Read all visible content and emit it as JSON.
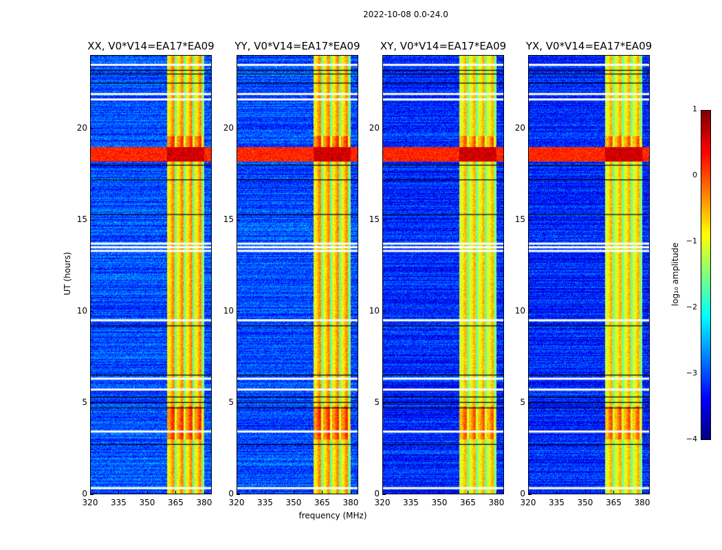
{
  "suptitle": "2022-10-08 0.0-24.0",
  "xlabel": "frequency (MHz)",
  "ylabel": "UT (hours)",
  "colorbar": {
    "label": "log₁₀ amplitude",
    "ticks": [
      "1",
      "0",
      "−1",
      "−2",
      "−3",
      "−4"
    ],
    "range": [
      -4,
      1
    ],
    "colormap": "jet"
  },
  "chart_data": {
    "type": "heatmap",
    "xlim": [
      320,
      384
    ],
    "ylim": [
      0,
      24
    ],
    "xticks": [
      "320",
      "335",
      "350",
      "365",
      "380"
    ],
    "xtick_values": [
      320,
      335,
      350,
      365,
      380
    ],
    "yticks": [
      "0",
      "5",
      "10",
      "15",
      "20"
    ],
    "ytick_values": [
      0,
      5,
      10,
      15,
      20
    ],
    "panels": [
      {
        "title": "XX, V0*V14=EA17*EA09",
        "band_level": -0.6,
        "background_level": -3.0
      },
      {
        "title": "YY, V0*V14=EA17*EA09",
        "band_level": -0.6,
        "background_level": -3.0
      },
      {
        "title": "XY, V0*V14=EA17*EA09",
        "band_level": -0.8,
        "background_level": -3.2
      },
      {
        "title": "YX, V0*V14=EA17*EA09",
        "band_level": -0.8,
        "background_level": -3.2
      }
    ],
    "signal_band_mhz": [
      360.5,
      380
    ],
    "subband_gaps_mhz": [
      365,
      369.8,
      374.6,
      379.3
    ],
    "rfi_hours": [
      18.2,
      19.0
    ],
    "bright_hours": [
      [
        3.0,
        4.8
      ],
      [
        18.9,
        19.6
      ]
    ],
    "flagged_hours_white": [
      0.3,
      3.4,
      5.7,
      6.3,
      9.5,
      13.3,
      13.5,
      13.7,
      21.6,
      21.9,
      23.5
    ],
    "flagged_hours_black": [
      2.7,
      4.7,
      5.0,
      5.3,
      6.5,
      9.2,
      15.3,
      17.2,
      18.0,
      22.5,
      23.0,
      23.2
    ]
  }
}
